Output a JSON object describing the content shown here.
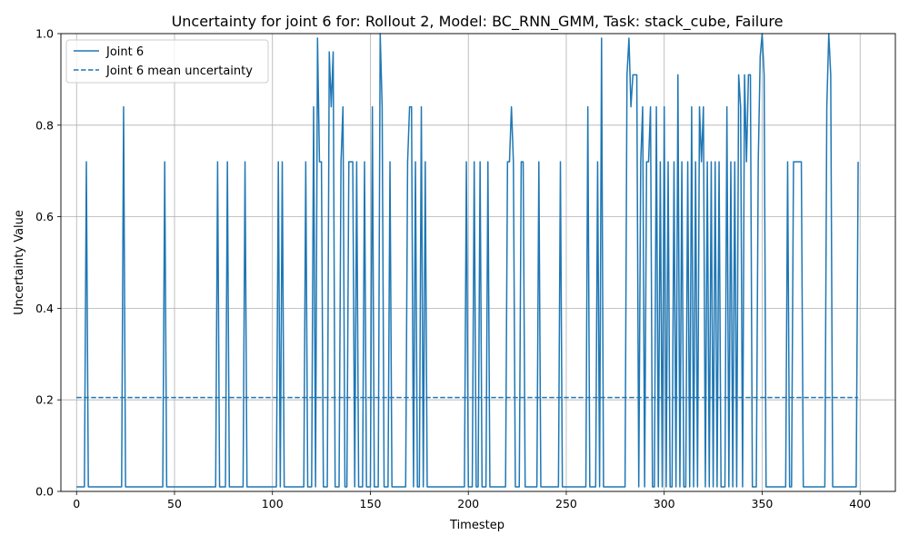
{
  "chart_data": {
    "type": "line",
    "title": "Uncertainty for joint 6 for: Rollout 2, Model: BC_RNN_GMM, Task: stack_cube, Failure",
    "xlabel": "Timestep",
    "ylabel": "Uncertainty Value",
    "xlim": [
      -8,
      418
    ],
    "ylim": [
      0,
      1.0
    ],
    "x_ticks": [
      0,
      50,
      100,
      150,
      200,
      250,
      300,
      350,
      400
    ],
    "y_ticks": [
      0.0,
      0.2,
      0.4,
      0.6,
      0.8,
      1.0
    ],
    "x_tick_labels": [
      "0",
      "50",
      "100",
      "150",
      "200",
      "250",
      "300",
      "350",
      "400"
    ],
    "y_tick_labels": [
      "0.0",
      "0.2",
      "0.4",
      "0.6",
      "0.8",
      "1.0"
    ],
    "grid": true,
    "legend_position": "top-left",
    "series": [
      {
        "name": "Joint 6",
        "style": "solid",
        "color": "#1f77b4",
        "baseline": 0.01,
        "x_range": [
          0,
          399
        ],
        "spikes": [
          [
            5,
            0.72
          ],
          [
            24,
            0.84
          ],
          [
            45,
            0.72
          ],
          [
            72,
            0.72
          ],
          [
            77,
            0.72
          ],
          [
            86,
            0.72
          ],
          [
            103,
            0.72
          ],
          [
            105,
            0.72
          ],
          [
            117,
            0.72
          ],
          [
            121,
            0.84
          ],
          [
            123,
            0.99
          ],
          [
            124,
            0.72
          ],
          [
            125,
            0.72
          ],
          [
            129,
            0.96
          ],
          [
            130,
            0.84
          ],
          [
            131,
            0.96
          ],
          [
            135,
            0.72
          ],
          [
            136,
            0.84
          ],
          [
            139,
            0.72
          ],
          [
            140,
            0.72
          ],
          [
            141,
            0.72
          ],
          [
            143,
            0.72
          ],
          [
            147,
            0.72
          ],
          [
            151,
            0.84
          ],
          [
            155,
            1.0
          ],
          [
            156,
            0.84
          ],
          [
            160,
            0.72
          ],
          [
            169,
            0.72
          ],
          [
            170,
            0.84
          ],
          [
            171,
            0.84
          ],
          [
            173,
            0.72
          ],
          [
            176,
            0.84
          ],
          [
            178,
            0.72
          ],
          [
            199,
            0.72
          ],
          [
            203,
            0.72
          ],
          [
            206,
            0.72
          ],
          [
            210,
            0.72
          ],
          [
            220,
            0.72
          ],
          [
            221,
            0.72
          ],
          [
            222,
            0.84
          ],
          [
            223,
            0.72
          ],
          [
            227,
            0.72
          ],
          [
            228,
            0.72
          ],
          [
            236,
            0.72
          ],
          [
            247,
            0.72
          ],
          [
            261,
            0.84
          ],
          [
            266,
            0.72
          ],
          [
            268,
            0.99
          ],
          [
            281,
            0.91
          ],
          [
            282,
            0.99
          ],
          [
            283,
            0.84
          ],
          [
            284,
            0.91
          ],
          [
            285,
            0.91
          ],
          [
            286,
            0.91
          ],
          [
            288,
            0.72
          ],
          [
            289,
            0.84
          ],
          [
            291,
            0.72
          ],
          [
            292,
            0.72
          ],
          [
            293,
            0.84
          ],
          [
            296,
            0.84
          ],
          [
            298,
            0.72
          ],
          [
            300,
            0.84
          ],
          [
            302,
            0.72
          ],
          [
            305,
            0.72
          ],
          [
            307,
            0.91
          ],
          [
            309,
            0.72
          ],
          [
            312,
            0.72
          ],
          [
            314,
            0.84
          ],
          [
            316,
            0.72
          ],
          [
            318,
            0.84
          ],
          [
            319,
            0.72
          ],
          [
            320,
            0.84
          ],
          [
            322,
            0.72
          ],
          [
            324,
            0.72
          ],
          [
            326,
            0.72
          ],
          [
            328,
            0.72
          ],
          [
            332,
            0.84
          ],
          [
            334,
            0.72
          ],
          [
            336,
            0.72
          ],
          [
            338,
            0.91
          ],
          [
            339,
            0.84
          ],
          [
            341,
            0.91
          ],
          [
            342,
            0.72
          ],
          [
            343,
            0.91
          ],
          [
            344,
            0.91
          ],
          [
            348,
            0.72
          ],
          [
            349,
            0.95
          ],
          [
            350,
            1.0
          ],
          [
            351,
            0.91
          ],
          [
            363,
            0.72
          ],
          [
            366,
            0.72
          ],
          [
            367,
            0.72
          ],
          [
            368,
            0.72
          ],
          [
            369,
            0.72
          ],
          [
            370,
            0.72
          ],
          [
            383,
            0.84
          ],
          [
            384,
            1.0
          ],
          [
            385,
            0.91
          ],
          [
            399,
            0.72
          ]
        ]
      },
      {
        "name": "Joint 6 mean uncertainty",
        "style": "dashed",
        "color": "#1f77b4",
        "constant": 0.205,
        "x_range": [
          0,
          399
        ]
      }
    ]
  }
}
